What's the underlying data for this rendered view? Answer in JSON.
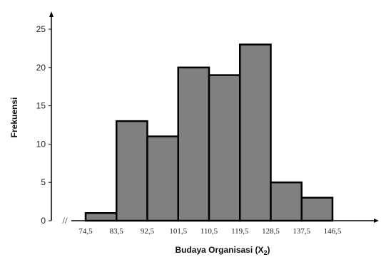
{
  "chart_data": {
    "type": "bar",
    "title": "",
    "xlabel": "Budaya Organisasi (X",
    "xlabel_sub": "2",
    "xlabel_close": ")",
    "ylabel": "Frekuensi",
    "ylim": [
      0,
      25
    ],
    "yticks": [
      "0",
      "5",
      "10",
      "15",
      "20",
      "25"
    ],
    "ytick_values": [
      0,
      5,
      10,
      15,
      20,
      25
    ],
    "xticks": [
      "74,5",
      "83,5",
      "92,5",
      "101,5",
      "110,5",
      "119,5",
      "128,5",
      "137,5",
      "146,5"
    ],
    "bins": [
      {
        "from": 74.5,
        "to": 83.5,
        "value": 1
      },
      {
        "from": 83.5,
        "to": 92.5,
        "value": 13
      },
      {
        "from": 92.5,
        "to": 101.5,
        "value": 11
      },
      {
        "from": 101.5,
        "to": 110.5,
        "value": 20
      },
      {
        "from": 110.5,
        "to": 119.5,
        "value": 19
      },
      {
        "from": 119.5,
        "to": 128.5,
        "value": 23
      },
      {
        "from": 128.5,
        "to": 137.5,
        "value": 5
      },
      {
        "from": 137.5,
        "to": 146.5,
        "value": 3
      }
    ],
    "axis_break": "//",
    "bar_color": "#808080",
    "bar_edge_color": "#000000",
    "grid": false
  }
}
